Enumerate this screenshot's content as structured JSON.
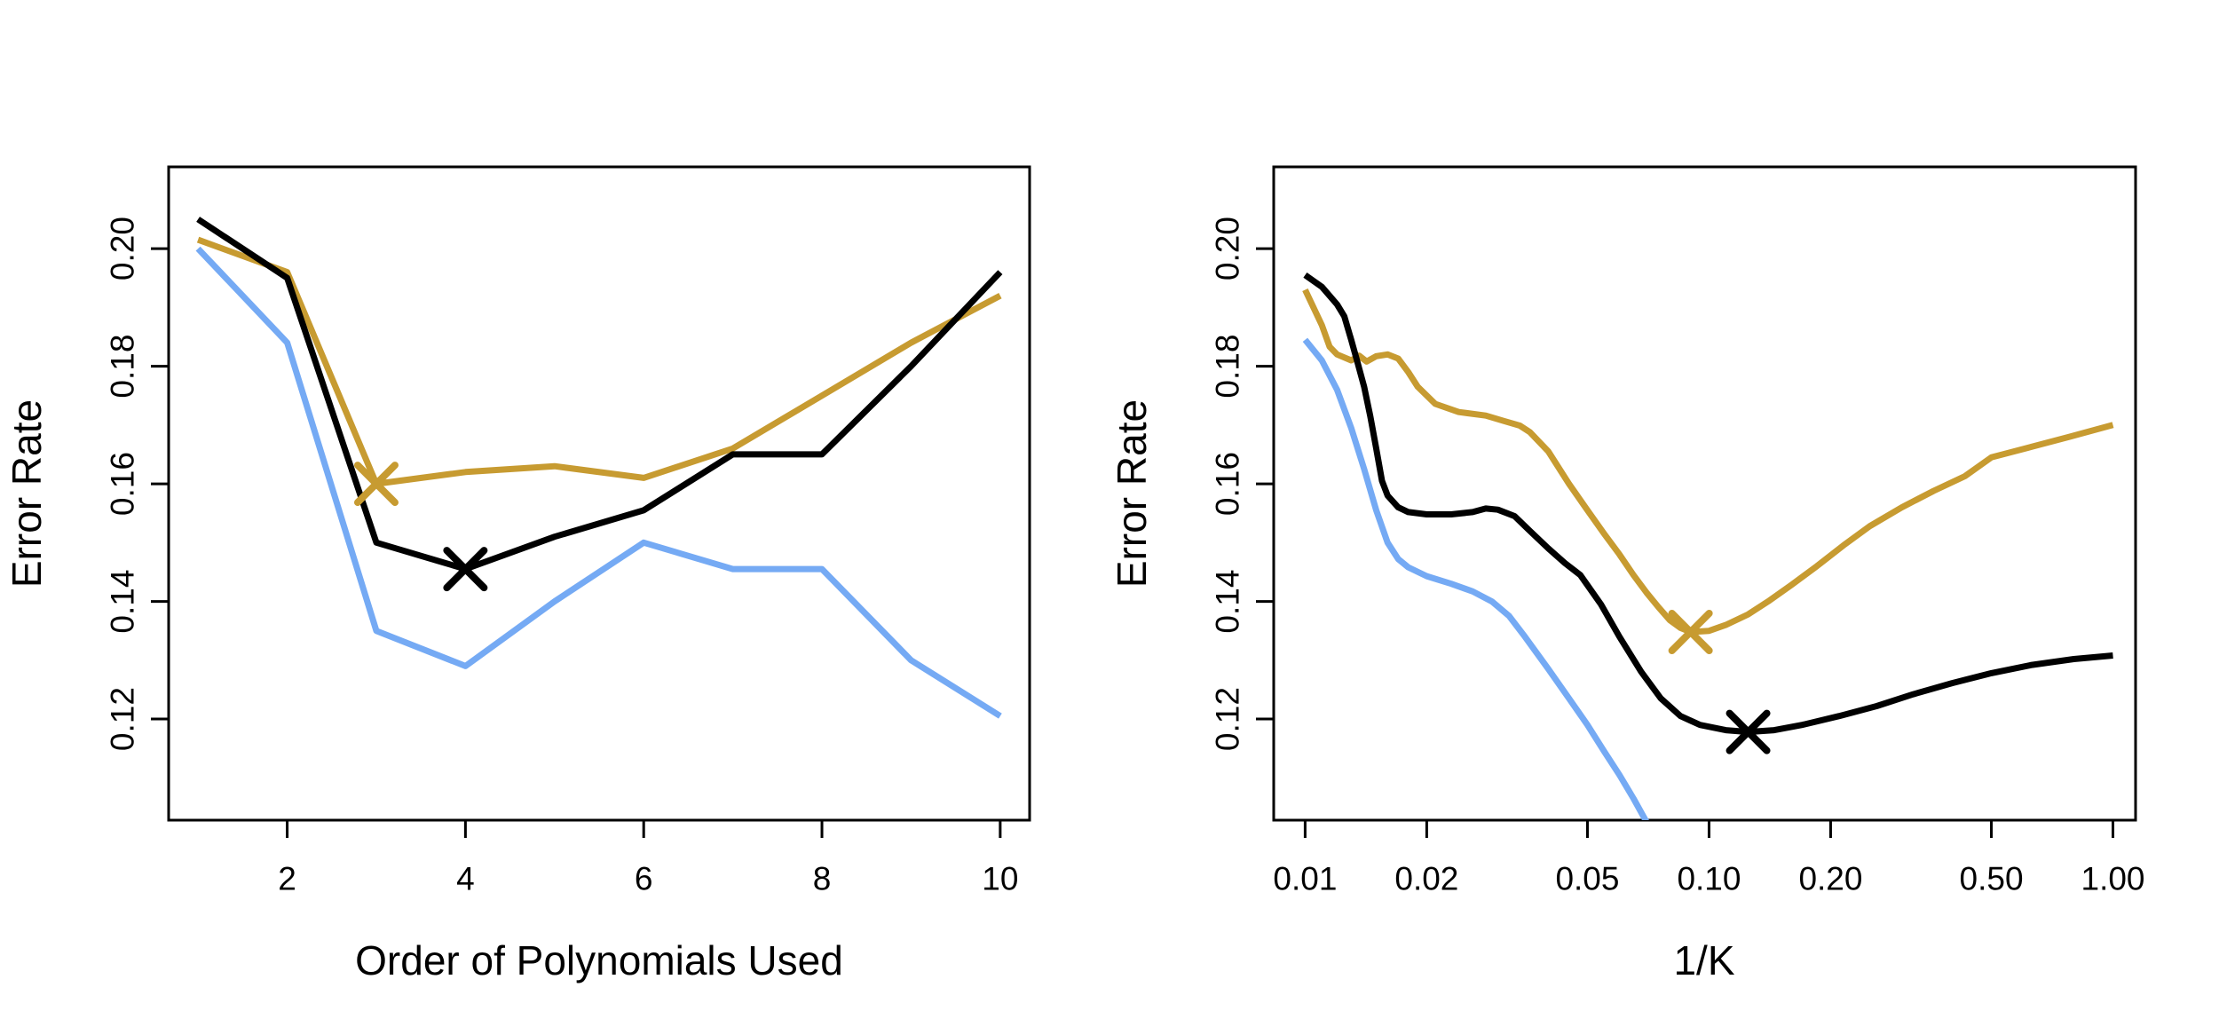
{
  "figure": {
    "background": "#ffffff",
    "panel_count": 2
  },
  "colors": {
    "gold": "#C79B31",
    "black": "#000000",
    "blue": "#75AAF4",
    "axis": "#000000"
  },
  "chart_data": [
    {
      "type": "line",
      "title": "",
      "xlabel": "Order of Polynomials Used",
      "ylabel": "Error Rate",
      "xscale": "linear",
      "xlim": [
        0.67,
        10.33
      ],
      "ylim": [
        0.1028,
        0.2139
      ],
      "x_ticks": [
        2,
        4,
        6,
        8,
        10
      ],
      "x_tick_labels": [
        "2",
        "4",
        "6",
        "8",
        "10"
      ],
      "y_ticks": [
        0.12,
        0.14,
        0.16,
        0.18,
        0.2
      ],
      "y_tick_labels": [
        "0.12",
        "0.14",
        "0.16",
        "0.18",
        "0.20"
      ],
      "grid": false,
      "legend": "none",
      "series": [
        {
          "id": "blue-series",
          "color": "#75AAF4",
          "points": [
            [
              1,
              0.2
            ],
            [
              2,
              0.184
            ],
            [
              3,
              0.135
            ],
            [
              4,
              0.129
            ],
            [
              5,
              0.14
            ],
            [
              6,
              0.15
            ],
            [
              7,
              0.1455
            ],
            [
              8,
              0.1455
            ],
            [
              9,
              0.13
            ],
            [
              10,
              0.1205
            ]
          ]
        },
        {
          "id": "gold-series",
          "color": "#C79B31",
          "points": [
            [
              1,
              0.2015
            ],
            [
              2,
              0.196
            ],
            [
              3,
              0.16
            ],
            [
              4,
              0.162
            ],
            [
              5,
              0.163
            ],
            [
              6,
              0.161
            ],
            [
              7,
              0.166
            ],
            [
              8,
              0.175
            ],
            [
              9,
              0.184
            ],
            [
              10,
              0.192
            ]
          ]
        },
        {
          "id": "black-series",
          "color": "#000000",
          "points": [
            [
              1,
              0.205
            ],
            [
              2,
              0.195
            ],
            [
              3,
              0.15
            ],
            [
              4,
              0.1455
            ],
            [
              5,
              0.151
            ],
            [
              6,
              0.1555
            ],
            [
              7,
              0.165
            ],
            [
              8,
              0.165
            ],
            [
              9,
              0.18
            ],
            [
              10,
              0.196
            ]
          ]
        }
      ],
      "min_markers": [
        {
          "id": "gold-min-marker",
          "color": "#C79B31",
          "x": 3,
          "y": 0.16
        },
        {
          "id": "black-min-marker",
          "color": "#000000",
          "x": 4,
          "y": 0.1455
        }
      ]
    },
    {
      "type": "line",
      "title": "",
      "xlabel": "1/K",
      "ylabel": "Error Rate",
      "xscale": "log",
      "xlim": [
        0.00836,
        1.1376
      ],
      "ylim": [
        0.1028,
        0.2139
      ],
      "x_ticks": [
        0.01,
        0.02,
        0.05,
        0.1,
        0.2,
        0.5,
        1.0
      ],
      "x_tick_labels": [
        "0.01",
        "0.02",
        "0.05",
        "0.10",
        "0.20",
        "0.50",
        "1.00"
      ],
      "y_ticks": [
        0.12,
        0.14,
        0.16,
        0.18,
        0.2
      ],
      "y_tick_labels": [
        "0.12",
        "0.14",
        "0.16",
        "0.18",
        "0.20"
      ],
      "grid": false,
      "legend": "none",
      "series": [
        {
          "id": "blue-series",
          "color": "#75AAF4",
          "points": [
            [
              0.01,
              0.1845
            ],
            [
              0.011,
              0.181
            ],
            [
              0.012,
              0.176
            ],
            [
              0.013,
              0.1695
            ],
            [
              0.014,
              0.1625
            ],
            [
              0.015,
              0.1555
            ],
            [
              0.016,
              0.15
            ],
            [
              0.017,
              0.1472
            ],
            [
              0.018,
              0.1458
            ],
            [
              0.02,
              0.1443
            ],
            [
              0.023,
              0.143
            ],
            [
              0.026,
              0.1417
            ],
            [
              0.029,
              0.14
            ],
            [
              0.032,
              0.1375
            ],
            [
              0.035,
              0.134
            ],
            [
              0.04,
              0.1285
            ],
            [
              0.045,
              0.1235
            ],
            [
              0.05,
              0.119
            ],
            [
              0.055,
              0.1145
            ],
            [
              0.06,
              0.1105
            ],
            [
              0.065,
              0.1065
            ],
            [
              0.07,
              0.1025
            ],
            [
              0.0735,
              0.0995
            ]
          ]
        },
        {
          "id": "gold-series",
          "color": "#C79B31",
          "points": [
            [
              0.01,
              0.193
            ],
            [
              0.011,
              0.187
            ],
            [
              0.0115,
              0.1833
            ],
            [
              0.012,
              0.182
            ],
            [
              0.013,
              0.181
            ],
            [
              0.0136,
              0.1818
            ],
            [
              0.0142,
              0.1808
            ],
            [
              0.015,
              0.1817
            ],
            [
              0.016,
              0.182
            ],
            [
              0.017,
              0.1813
            ],
            [
              0.018,
              0.179
            ],
            [
              0.019,
              0.1765
            ],
            [
              0.021,
              0.1736
            ],
            [
              0.024,
              0.1722
            ],
            [
              0.028,
              0.1716
            ],
            [
              0.031,
              0.1707
            ],
            [
              0.034,
              0.1699
            ],
            [
              0.036,
              0.1688
            ],
            [
              0.04,
              0.1655
            ],
            [
              0.045,
              0.16
            ],
            [
              0.05,
              0.1555
            ],
            [
              0.055,
              0.1515
            ],
            [
              0.06,
              0.148
            ],
            [
              0.065,
              0.1445
            ],
            [
              0.07,
              0.1415
            ],
            [
              0.075,
              0.139
            ],
            [
              0.08,
              0.1368
            ],
            [
              0.085,
              0.1355
            ],
            [
              0.09,
              0.1348
            ],
            [
              0.1,
              0.135
            ],
            [
              0.11,
              0.136
            ],
            [
              0.125,
              0.1378
            ],
            [
              0.14,
              0.14
            ],
            [
              0.16,
              0.1428
            ],
            [
              0.185,
              0.146
            ],
            [
              0.215,
              0.1495
            ],
            [
              0.25,
              0.1528
            ],
            [
              0.3,
              0.156
            ],
            [
              0.36,
              0.1588
            ],
            [
              0.43,
              0.1613
            ],
            [
              0.5,
              0.1645
            ],
            [
              0.63,
              0.1663
            ],
            [
              0.78,
              0.168
            ],
            [
              1.0,
              0.17
            ]
          ]
        },
        {
          "id": "black-series",
          "color": "#000000",
          "points": [
            [
              0.01,
              0.1955
            ],
            [
              0.011,
              0.1935
            ],
            [
              0.012,
              0.1905
            ],
            [
              0.0125,
              0.1885
            ],
            [
              0.013,
              0.1845
            ],
            [
              0.0135,
              0.1805
            ],
            [
              0.014,
              0.1765
            ],
            [
              0.0145,
              0.1715
            ],
            [
              0.015,
              0.166
            ],
            [
              0.0155,
              0.1605
            ],
            [
              0.016,
              0.158
            ],
            [
              0.017,
              0.156
            ],
            [
              0.018,
              0.1552
            ],
            [
              0.02,
              0.1548
            ],
            [
              0.023,
              0.1548
            ],
            [
              0.026,
              0.1552
            ],
            [
              0.028,
              0.1558
            ],
            [
              0.03,
              0.1556
            ],
            [
              0.033,
              0.1545
            ],
            [
              0.036,
              0.152
            ],
            [
              0.04,
              0.149
            ],
            [
              0.044,
              0.1465
            ],
            [
              0.048,
              0.1445
            ],
            [
              0.054,
              0.1395
            ],
            [
              0.06,
              0.134
            ],
            [
              0.068,
              0.128
            ],
            [
              0.076,
              0.1235
            ],
            [
              0.085,
              0.1205
            ],
            [
              0.095,
              0.119
            ],
            [
              0.11,
              0.1181
            ],
            [
              0.125,
              0.1178
            ],
            [
              0.145,
              0.1181
            ],
            [
              0.17,
              0.119
            ],
            [
              0.21,
              0.1205
            ],
            [
              0.26,
              0.1222
            ],
            [
              0.32,
              0.1242
            ],
            [
              0.4,
              0.1261
            ],
            [
              0.5,
              0.1278
            ],
            [
              0.63,
              0.1292
            ],
            [
              0.8,
              0.1302
            ],
            [
              1.0,
              0.1308
            ]
          ]
        }
      ],
      "min_markers": [
        {
          "id": "gold-min-marker",
          "color": "#C79B31",
          "x": 0.09,
          "y": 0.1348
        },
        {
          "id": "black-min-marker",
          "color": "#000000",
          "x": 0.125,
          "y": 0.1178
        }
      ]
    }
  ]
}
